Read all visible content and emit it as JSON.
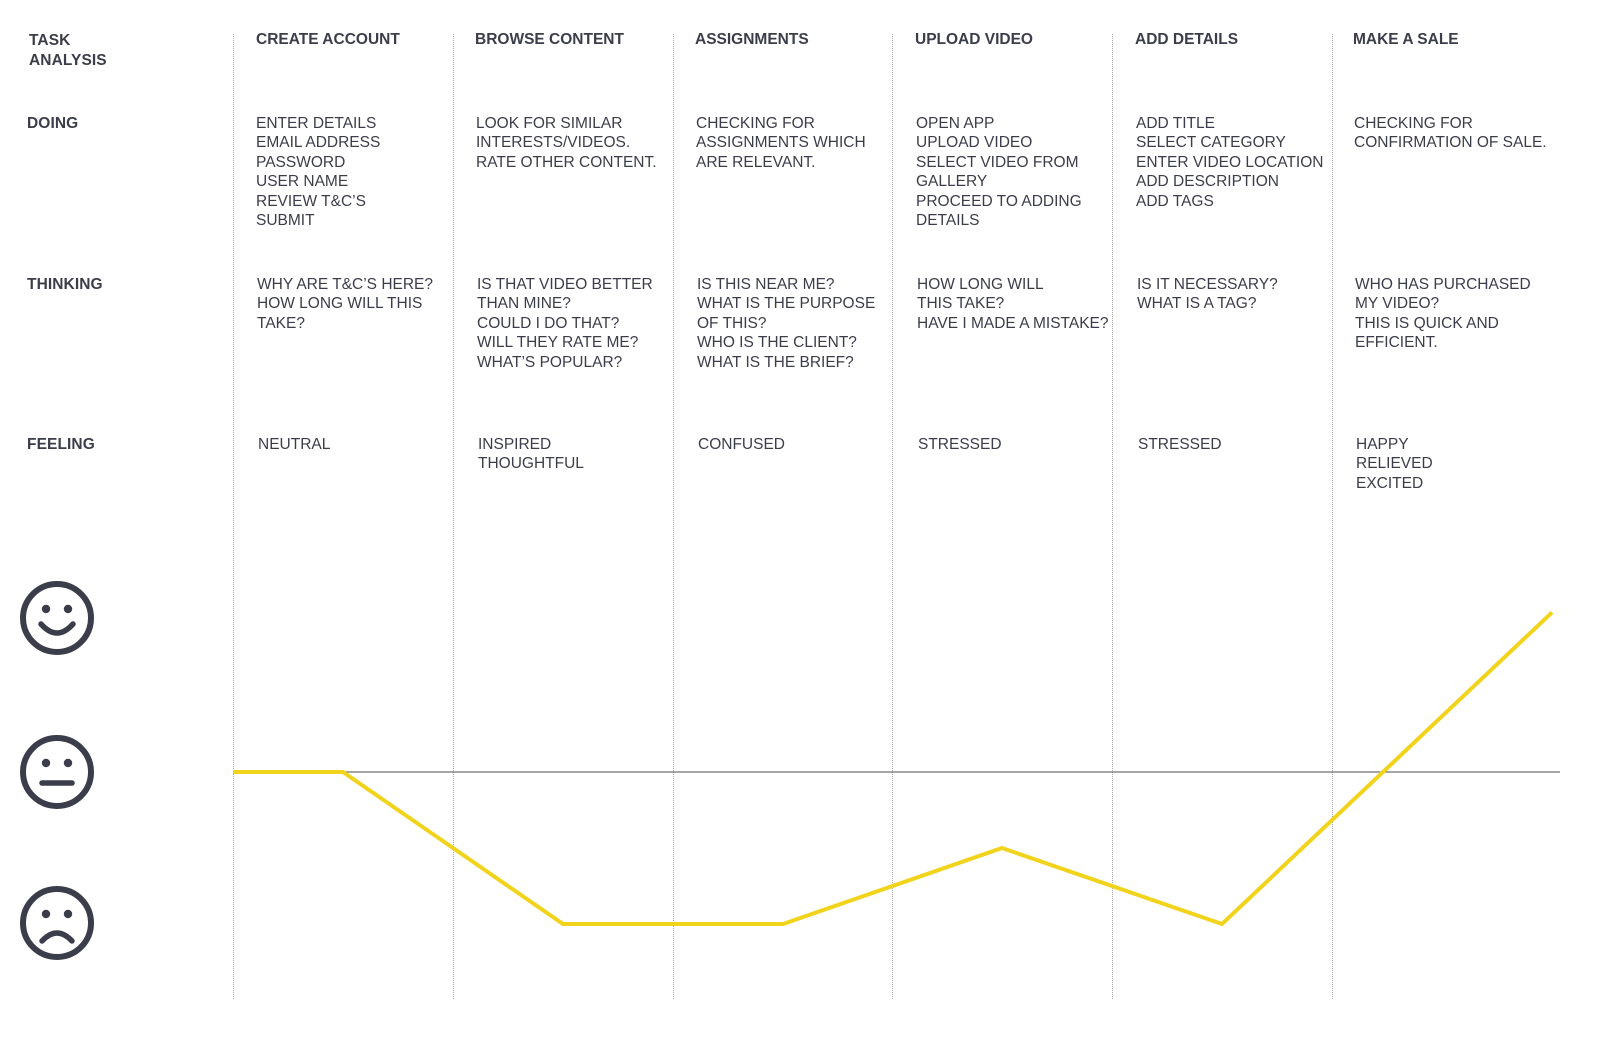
{
  "colors": {
    "text": "#3c3d4a",
    "curve": "#f2d31b",
    "baseline": "#707070",
    "divider": "#a8a8a8",
    "face": "#3c3d4a"
  },
  "row_labels": {
    "task": "TASK",
    "analysis": "ANALYSIS",
    "doing": "DOING",
    "thinking": "THINKING",
    "feeling": "FEELING"
  },
  "stages": [
    {
      "title": "CREATE ACCOUNT",
      "doing": [
        "ENTER DETAILS",
        "EMAIL ADDRESS",
        "PASSWORD",
        "USER NAME",
        "REVIEW T&C’S",
        "SUBMIT"
      ],
      "thinking": [
        "WHY ARE T&C’S HERE?",
        "HOW LONG WILL THIS",
        "TAKE?"
      ],
      "feeling": [
        "NEUTRAL"
      ]
    },
    {
      "title": "BROWSE CONTENT",
      "doing": [
        "LOOK FOR SIMILAR",
        "INTERESTS/VIDEOS.",
        "RATE OTHER CONTENT."
      ],
      "thinking": [
        "IS THAT VIDEO BETTER",
        "THAN MINE?",
        "COULD I DO THAT?",
        "WILL THEY RATE ME?",
        "WHAT’S POPULAR?"
      ],
      "feeling": [
        "INSPIRED",
        "THOUGHTFUL"
      ]
    },
    {
      "title": "ASSIGNMENTS",
      "doing": [
        "CHECKING FOR",
        "ASSIGNMENTS WHICH",
        "ARE RELEVANT."
      ],
      "thinking": [
        "IS THIS NEAR ME?",
        "WHAT IS THE PURPOSE",
        "OF THIS?",
        "WHO IS THE CLIENT?",
        "WHAT IS THE BRIEF?"
      ],
      "feeling": [
        "CONFUSED"
      ]
    },
    {
      "title": "UPLOAD VIDEO",
      "doing": [
        "OPEN APP",
        "UPLOAD VIDEO",
        "SELECT VIDEO FROM",
        "GALLERY",
        "PROCEED TO ADDING",
        "DETAILS"
      ],
      "thinking": [
        "HOW LONG WILL",
        "THIS TAKE?",
        "HAVE I MADE A MISTAKE?"
      ],
      "feeling": [
        "STRESSED"
      ]
    },
    {
      "title": "ADD DETAILS",
      "doing": [
        "ADD TITLE",
        "SELECT CATEGORY",
        "ENTER VIDEO LOCATION",
        "ADD DESCRIPTION",
        "ADD TAGS"
      ],
      "thinking": [
        "IS IT NECESSARY?",
        "WHAT IS A TAG?"
      ],
      "feeling": [
        "STRESSED"
      ]
    },
    {
      "title": "MAKE A SALE",
      "doing": [
        "CHECKING FOR",
        "CONFIRMATION OF SALE."
      ],
      "thinking": [
        "WHO HAS PURCHASED",
        "MY VIDEO?",
        "THIS IS QUICK AND",
        "EFFICIENT."
      ],
      "feeling": [
        "HAPPY",
        "RELIEVED",
        "EXCITED"
      ]
    }
  ],
  "icons": [
    "happy-face-icon",
    "neutral-face-icon",
    "sad-face-icon"
  ],
  "emotion_curve": {
    "scale": {
      "happy": 1,
      "neutral": 0,
      "sad": -1
    },
    "points": [
      {
        "stage": 0,
        "offset": 0.0,
        "value": 0.0
      },
      {
        "stage": 0,
        "offset": 0.5,
        "value": 0.0
      },
      {
        "stage": 1,
        "offset": 0.5,
        "value": -1.0
      },
      {
        "stage": 2,
        "offset": 0.5,
        "value": -1.0
      },
      {
        "stage": 3,
        "offset": 0.5,
        "value": -0.5
      },
      {
        "stage": 4,
        "offset": 0.5,
        "value": -1.0
      },
      {
        "stage": 5,
        "offset": 1.0,
        "value": 1.05
      }
    ]
  }
}
